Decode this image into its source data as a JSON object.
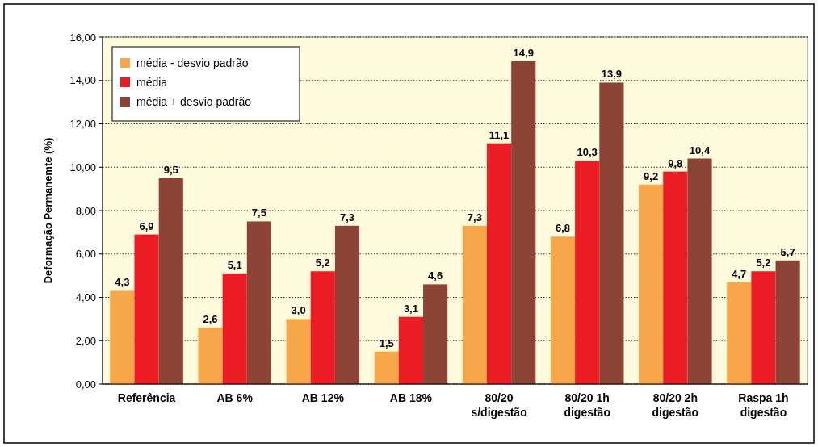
{
  "chart_data": {
    "type": "bar",
    "ylabel": "Deformação Permanemte (%)",
    "categories": [
      "Referência",
      "AB 6%",
      "AB 12%",
      "AB 18%",
      "80/20 s/digestão",
      "80/20 1h digestão",
      "80/20 2h digestão",
      "Raspa 1h digestão"
    ],
    "series": [
      {
        "name": "média - desvio padrão",
        "color": "#f7a64a",
        "values": [
          4.3,
          2.6,
          3.0,
          1.5,
          7.3,
          6.8,
          9.2,
          4.7
        ],
        "value_labels": [
          "4,3",
          "2,6",
          "3,0",
          "1,5",
          "7,3",
          "6,8",
          "9,2",
          "4,7"
        ]
      },
      {
        "name": "média",
        "color": "#ec1c24",
        "values": [
          6.9,
          5.1,
          5.2,
          3.1,
          11.1,
          10.3,
          9.8,
          5.2
        ],
        "value_labels": [
          "6,9",
          "5,1",
          "5,2",
          "3,1",
          "11,1",
          "10,3",
          "9,8",
          "5,2"
        ]
      },
      {
        "name": "média + desvio padrão",
        "color": "#8b4436",
        "values": [
          9.5,
          7.5,
          7.3,
          4.6,
          14.9,
          13.9,
          10.4,
          5.7
        ],
        "value_labels": [
          "9,5",
          "7,5",
          "7,3",
          "4,6",
          "14,9",
          "13,9",
          "10,4",
          "5,7"
        ]
      }
    ],
    "ylim": [
      0,
      16
    ],
    "yticks": [
      {
        "value": 0,
        "label": "0,00"
      },
      {
        "value": 2,
        "label": "2,00"
      },
      {
        "value": 4,
        "label": "4,00"
      },
      {
        "value": 6,
        "label": "6,00"
      },
      {
        "value": 8,
        "label": "8,00"
      },
      {
        "value": 10,
        "label": "10,00"
      },
      {
        "value": 12,
        "label": "12,00"
      },
      {
        "value": 14,
        "label": "14,00"
      },
      {
        "value": 16,
        "label": "16,00"
      }
    ],
    "grid": "y",
    "legend": "top left"
  }
}
